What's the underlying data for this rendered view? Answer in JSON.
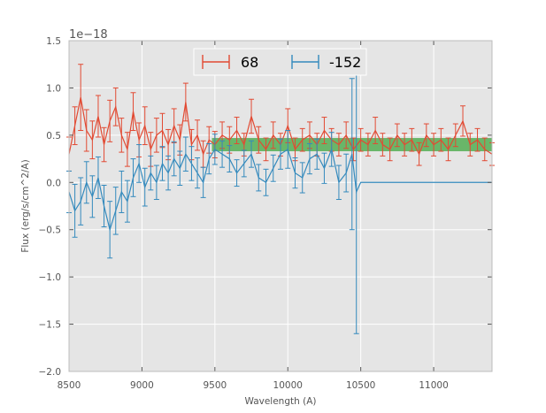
{
  "chart_data": {
    "type": "line",
    "title": "",
    "xlabel": "Wavelength (A)",
    "ylabel": "Flux (erg/s/cm^2/A)",
    "y_offset_label": "1e−18",
    "xlim": [
      8500,
      11400
    ],
    "ylim": [
      -2.0,
      1.5
    ],
    "xticks": [
      8500,
      9000,
      9500,
      10000,
      10500,
      11000
    ],
    "xtick_labels": [
      "8500",
      "9000",
      "9500",
      "10000",
      "10500",
      "11000"
    ],
    "yticks": [
      -2.0,
      -1.5,
      -1.0,
      -0.5,
      0.0,
      0.5,
      1.0,
      1.5
    ],
    "ytick_labels": [
      "−2.0",
      "−1.5",
      "−1.0",
      "−0.5",
      "0.0",
      "0.5",
      "1.0",
      "1.5"
    ],
    "grid": true,
    "legend_position": "top-center",
    "band": {
      "x0": 9480,
      "x1": 11400,
      "y0": 0.33,
      "y1": 0.47,
      "color": "#3fa53f"
    },
    "series": [
      {
        "name": "68",
        "color": "#e24a33",
        "x": [
          8500,
          8540,
          8580,
          8620,
          8660,
          8700,
          8740,
          8780,
          8820,
          8860,
          8900,
          8940,
          8980,
          9020,
          9060,
          9100,
          9140,
          9180,
          9220,
          9260,
          9300,
          9340,
          9380,
          9420,
          9460,
          9500,
          9550,
          9600,
          9650,
          9700,
          9750,
          9800,
          9850,
          9900,
          9950,
          10000,
          10050,
          10100,
          10150,
          10200,
          10250,
          10300,
          10350,
          10400,
          10450,
          10500,
          10550,
          10600,
          10650,
          10700,
          10750,
          10800,
          10850,
          10900,
          10950,
          11000,
          11050,
          11100,
          11150,
          11200,
          11250,
          11300,
          11350,
          11400
        ],
        "y": [
          0.3,
          0.6,
          0.9,
          0.55,
          0.45,
          0.7,
          0.4,
          0.65,
          0.8,
          0.5,
          0.35,
          0.75,
          0.45,
          0.6,
          0.35,
          0.5,
          0.55,
          0.4,
          0.6,
          0.45,
          0.85,
          0.4,
          0.5,
          0.3,
          0.45,
          0.4,
          0.5,
          0.45,
          0.55,
          0.4,
          0.7,
          0.45,
          0.35,
          0.5,
          0.4,
          0.6,
          0.35,
          0.45,
          0.5,
          0.4,
          0.55,
          0.45,
          0.4,
          0.5,
          0.35,
          0.45,
          0.4,
          0.55,
          0.4,
          0.35,
          0.5,
          0.4,
          0.45,
          0.3,
          0.5,
          0.4,
          0.45,
          0.35,
          0.5,
          0.65,
          0.4,
          0.45,
          0.35,
          0.3
        ],
        "err": [
          0.18,
          0.2,
          0.35,
          0.22,
          0.2,
          0.22,
          0.18,
          0.22,
          0.2,
          0.18,
          0.18,
          0.2,
          0.18,
          0.2,
          0.18,
          0.18,
          0.18,
          0.16,
          0.18,
          0.16,
          0.2,
          0.16,
          0.16,
          0.14,
          0.14,
          0.14,
          0.14,
          0.14,
          0.14,
          0.12,
          0.18,
          0.14,
          0.12,
          0.14,
          0.12,
          0.18,
          0.12,
          0.12,
          0.14,
          0.12,
          0.14,
          0.12,
          0.12,
          0.14,
          0.12,
          0.12,
          0.12,
          0.14,
          0.12,
          0.12,
          0.12,
          0.12,
          0.12,
          0.12,
          0.12,
          0.12,
          0.12,
          0.12,
          0.12,
          0.16,
          0.12,
          0.12,
          0.12,
          0.12
        ]
      },
      {
        "name": "-152",
        "color": "#348abd",
        "x": [
          8500,
          8540,
          8580,
          8620,
          8660,
          8700,
          8740,
          8780,
          8820,
          8860,
          8900,
          8940,
          8980,
          9020,
          9060,
          9100,
          9140,
          9180,
          9220,
          9260,
          9300,
          9340,
          9380,
          9420,
          9460,
          9500,
          9550,
          9600,
          9650,
          9700,
          9750,
          9800,
          9850,
          9900,
          9950,
          10000,
          10050,
          10100,
          10150,
          10200,
          10250,
          10300,
          10350,
          10400,
          10440,
          10470,
          10500,
          11400
        ],
        "y": [
          -0.1,
          -0.3,
          -0.2,
          0.0,
          -0.15,
          0.05,
          -0.25,
          -0.5,
          -0.3,
          -0.1,
          -0.2,
          0.05,
          0.2,
          -0.05,
          0.1,
          0.0,
          0.2,
          0.1,
          0.25,
          0.15,
          0.3,
          0.2,
          0.1,
          0.0,
          0.25,
          0.35,
          0.3,
          0.25,
          0.1,
          0.2,
          0.3,
          0.05,
          0.0,
          0.15,
          0.3,
          0.35,
          0.1,
          0.05,
          0.25,
          0.3,
          0.15,
          0.35,
          0.0,
          0.1,
          0.3,
          -0.1,
          0.0,
          0.0
        ],
        "err": [
          0.22,
          0.28,
          0.25,
          0.22,
          0.22,
          0.22,
          0.22,
          0.3,
          0.25,
          0.22,
          0.22,
          0.2,
          0.2,
          0.2,
          0.18,
          0.18,
          0.18,
          0.18,
          0.18,
          0.18,
          0.18,
          0.18,
          0.16,
          0.16,
          0.16,
          0.16,
          0.14,
          0.14,
          0.14,
          0.14,
          0.14,
          0.14,
          0.14,
          0.14,
          0.16,
          0.2,
          0.16,
          0.16,
          0.16,
          0.16,
          0.16,
          0.18,
          0.18,
          0.2,
          0.8,
          1.5,
          0.0,
          0.0
        ]
      }
    ]
  }
}
